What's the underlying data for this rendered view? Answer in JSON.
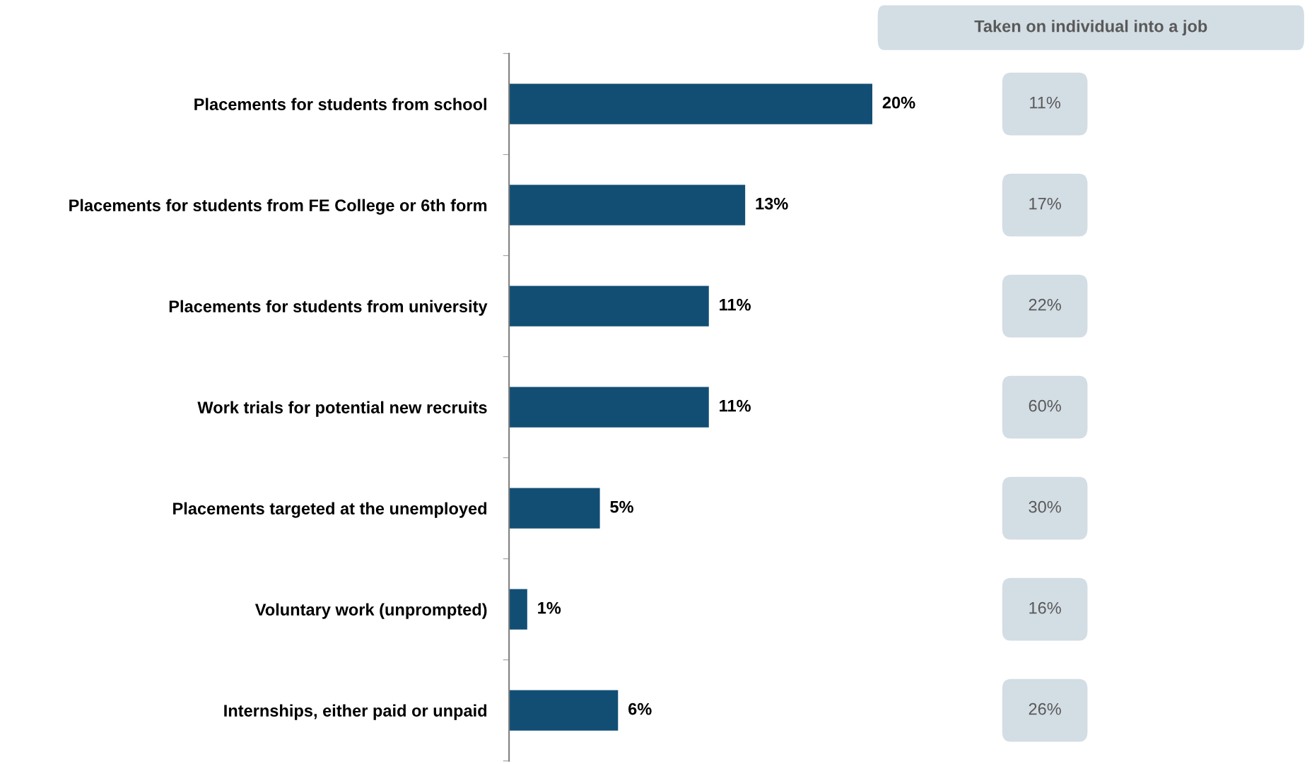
{
  "chart_data": [
    {
      "type": "bar",
      "orientation": "horizontal",
      "categories": [
        "Placements for students from school",
        "Placements for students from FE College or 6th form",
        "Placements for students from university",
        "Work trials for potential new recruits",
        "Placements targeted at the unemployed",
        "Voluntary work (unprompted)",
        "Internships, either paid or unpaid"
      ],
      "values": [
        20,
        13,
        11,
        11,
        5,
        1,
        6
      ],
      "value_labels": [
        "20%",
        "13%",
        "11%",
        "11%",
        "5%",
        "1%",
        "6%"
      ],
      "color": "#124e74",
      "tick_labels": "y",
      "grid": false,
      "legend": false
    },
    {
      "type": "other",
      "title": "Taken on individual into a job",
      "categories": [
        null,
        null,
        null,
        null,
        null,
        null,
        null
      ],
      "values": [
        11,
        17,
        22,
        60,
        30,
        16,
        26
      ],
      "value_labels": [
        "11%",
        "17%",
        "22%",
        "60%",
        "30%",
        "16%",
        "26%"
      ],
      "color": "#d3dde4"
    }
  ]
}
